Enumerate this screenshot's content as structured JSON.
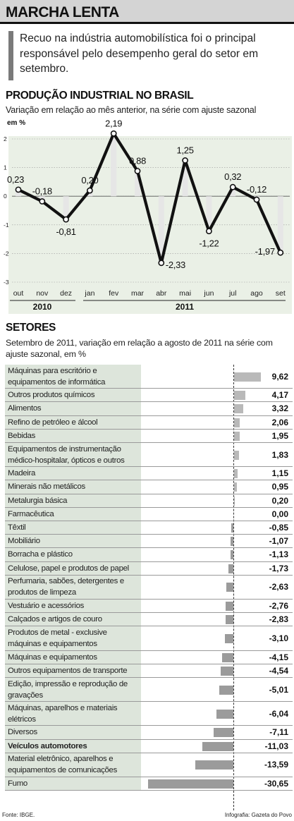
{
  "header": {
    "title": "MARCHA LENTA",
    "subtitle": "Recuo na indústria automobilística foi o principal responsável pelo desempenho geral do setor em setembro."
  },
  "production": {
    "title": "PRODUÇÃO INDUSTRIAL NO BRASIL",
    "subtitle": "Variação em relação ao mês anterior, na série com ajuste sazonal",
    "unit": "em %",
    "years": [
      "2010",
      "2011"
    ]
  },
  "sectors_block": {
    "title": "SETORES",
    "subtitle": "Setembro de 2011, variação em relação a agosto de 2011 na série com ajuste sazonal, em %"
  },
  "chart_data": [
    {
      "type": "line",
      "title": "PRODUÇÃO INDUSTRIAL NO BRASIL",
      "ylabel": "em %",
      "x": [
        "out",
        "nov",
        "dez",
        "jan",
        "fev",
        "mar",
        "abr",
        "mai",
        "jun",
        "jul",
        "ago",
        "set"
      ],
      "series": [
        {
          "values": [
            0.23,
            -0.18,
            -0.81,
            0.2,
            2.19,
            0.88,
            -2.33,
            1.25,
            -1.22,
            0.32,
            -0.12,
            -1.97
          ]
        }
      ],
      "value_labels": [
        "0,23",
        "-0,18",
        "-0,81",
        "0,20",
        "2,19",
        "0,88",
        "-2,33",
        "1,25",
        "-1,22",
        "0,32",
        "-0,12",
        "-1,97"
      ],
      "yticks": [
        "2",
        "1",
        "0",
        "-1",
        "-2",
        "-3"
      ],
      "ylim": [
        -3,
        2
      ],
      "line_color": "#111111",
      "column_color": "#e6e6e6"
    },
    {
      "type": "bar",
      "title": "SETORES",
      "categories": [
        "Máquinas para escritório e equipamentos de informática",
        "Outros produtos químicos",
        "Alimentos",
        "Refino de petróleo e álcool",
        "Bebidas",
        "Equipamentos de instrumentação médico-hospitalar, ópticos e outros",
        "Madeira",
        "Minerais não metálicos",
        "Metalurgia básica",
        "Farmacêutica",
        "Têxtil",
        "Mobiliário",
        "Borracha e plástico",
        "Celulose, papel e produtos de papel",
        "Perfumaria, sabões, detergentes e produtos de limpeza",
        "Vestuário e acessórios",
        "Calçados e artigos de couro",
        "Produtos de metal - exclusive máquinas e equipamentos",
        "Máquinas e equipamentos",
        "Outros equipamentos de transporte",
        "Edição, impressão e reprodução de gravações",
        "Máquinas, aparelhos e materiais elétricos",
        "Diversos",
        "Veículos automotores",
        "Material eletrônico, aparelhos e equipamentos de comunicações",
        "Fumo"
      ],
      "values": [
        9.62,
        4.17,
        3.32,
        2.06,
        1.95,
        1.83,
        1.15,
        0.95,
        0.2,
        0.0,
        -0.85,
        -1.07,
        -1.13,
        -1.73,
        -2.63,
        -2.76,
        -2.83,
        -3.1,
        -4.15,
        -4.54,
        -5.01,
        -6.04,
        -7.11,
        -11.03,
        -13.59,
        -30.65
      ],
      "value_labels": [
        "9,62",
        "4,17",
        "3,32",
        "2,06",
        "1,95",
        "1,83",
        "1,15",
        "0,95",
        "0,20",
        "0,00",
        "-0,85",
        "-1,07",
        "-1,13",
        "-1,73",
        "-2,63",
        "-2,76",
        "-2,83",
        "-3,10",
        "-4,15",
        "-4,54",
        "-5,01",
        "-6,04",
        "-7,11",
        "-11,03",
        "-13,59",
        "-30,65"
      ],
      "highlight": "Veículos automotores",
      "bar_color": "#9b9b9b",
      "label_color": "#dde5db"
    }
  ],
  "footer": {
    "source": "Fonte: IBGE.",
    "credit": "Infografia: Gazeta do Povo"
  }
}
